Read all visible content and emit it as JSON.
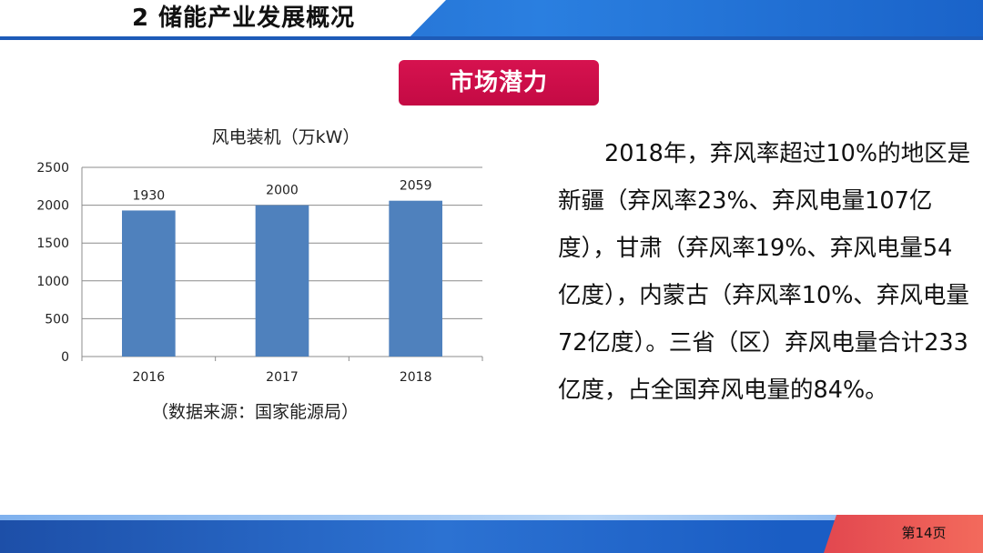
{
  "header": {
    "title": "2  储能产业发展概况"
  },
  "badge": {
    "label": "市场潜力"
  },
  "chart_data": {
    "type": "bar",
    "title": "风电装机（万kW）",
    "categories": [
      "2016",
      "2017",
      "2018"
    ],
    "values": [
      1930,
      2000,
      2059
    ],
    "data_labels": [
      "1930",
      "2000",
      "2059"
    ],
    "yticks": [
      "0",
      "500",
      "1000",
      "1500",
      "2000",
      "2500"
    ],
    "ylim": [
      0,
      2500
    ],
    "xlabel": "",
    "ylabel": "",
    "grid": true,
    "legend": "none",
    "bar_color": "#4f81bd"
  },
  "chart_source": "（数据来源：国家能源局）",
  "body": {
    "text": "2018年，弃风率超过10%的地区是新疆（弃风率23%、弃风电量107亿度），甘肃（弃风率19%、弃风电量54亿度），内蒙古（弃风率10%、弃风电量72亿度）。三省（区）弃风电量合计233亿度，占全国弃风电量的84%。"
  },
  "footer": {
    "page": "第14页"
  },
  "colors": {
    "header_blue": "#1f5fbf",
    "badge_red": "#d6124f",
    "footer_red": "#e2474f"
  }
}
